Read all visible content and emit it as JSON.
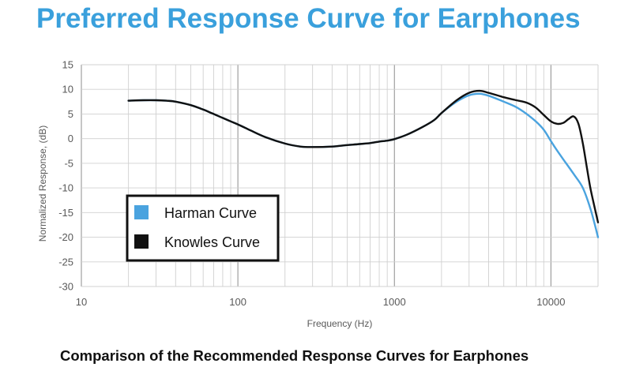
{
  "title": "Preferred Response Curve for Earphones",
  "caption": "Comparison of the Recommended Response Curves for Earphones",
  "colors": {
    "title": "#3aa0dc",
    "harman": "#4aa3df",
    "knowles": "#111111",
    "grid": "#d0d0d0"
  },
  "chart_data": {
    "type": "line",
    "xlabel": "Frequency (Hz)",
    "ylabel": "Normalized Response, (dB)",
    "xscale": "log",
    "xlim": [
      10,
      20000
    ],
    "ylim": [
      -30,
      15
    ],
    "grid": true,
    "legend_position": "lower-left",
    "xticks": [
      {
        "value": 10,
        "label": "10"
      },
      {
        "value": 100,
        "label": "100"
      },
      {
        "value": 1000,
        "label": "1000"
      },
      {
        "value": 10000,
        "label": "10000"
      }
    ],
    "yticks": [
      {
        "value": 15,
        "label": "15"
      },
      {
        "value": 10,
        "label": "10"
      },
      {
        "value": 5,
        "label": "5"
      },
      {
        "value": 0,
        "label": "0"
      },
      {
        "value": -5,
        "label": "-5"
      },
      {
        "value": -10,
        "label": "-10"
      },
      {
        "value": -15,
        "label": "-15"
      },
      {
        "value": -20,
        "label": "-20"
      },
      {
        "value": -25,
        "label": "-25"
      },
      {
        "value": -30,
        "label": "-30"
      }
    ],
    "series": [
      {
        "name": "Harman Curve",
        "x": [
          20,
          25,
          30,
          35,
          40,
          50,
          60,
          70,
          80,
          90,
          100,
          120,
          150,
          200,
          250,
          300,
          400,
          500,
          600,
          700,
          800,
          900,
          1000,
          1200,
          1500,
          1800,
          2000,
          2500,
          3000,
          3500,
          4000,
          5000,
          6000,
          7000,
          8000,
          9000,
          10000,
          11000,
          12000,
          14000,
          16000,
          18000,
          20000
        ],
        "y": [
          7.7,
          7.8,
          7.8,
          7.7,
          7.5,
          6.8,
          5.9,
          5.0,
          4.2,
          3.5,
          2.9,
          1.7,
          0.3,
          -1.0,
          -1.6,
          -1.7,
          -1.6,
          -1.3,
          -1.1,
          -0.9,
          -0.6,
          -0.4,
          -0.1,
          0.8,
          2.3,
          3.8,
          5.2,
          7.5,
          8.8,
          9.1,
          8.7,
          7.5,
          6.4,
          5.0,
          3.5,
          1.8,
          -0.5,
          -2.5,
          -4.2,
          -7.2,
          -10.0,
          -14.5,
          -20.0
        ]
      },
      {
        "name": "Knowles Curve",
        "x": [
          20,
          25,
          30,
          35,
          40,
          50,
          60,
          70,
          80,
          90,
          100,
          120,
          150,
          200,
          250,
          300,
          400,
          500,
          600,
          700,
          800,
          900,
          1000,
          1200,
          1500,
          1800,
          2000,
          2500,
          3000,
          3500,
          4000,
          5000,
          6000,
          7000,
          8000,
          9000,
          10000,
          11000,
          12000,
          13000,
          14000,
          15000,
          16000,
          17000,
          18000,
          20000
        ],
        "y": [
          7.7,
          7.8,
          7.8,
          7.7,
          7.5,
          6.8,
          5.9,
          5.0,
          4.2,
          3.5,
          2.9,
          1.7,
          0.3,
          -1.0,
          -1.6,
          -1.7,
          -1.6,
          -1.3,
          -1.1,
          -0.9,
          -0.6,
          -0.4,
          -0.1,
          0.8,
          2.3,
          3.8,
          5.2,
          7.8,
          9.3,
          9.7,
          9.3,
          8.4,
          7.8,
          7.3,
          6.3,
          4.8,
          3.5,
          3.0,
          3.2,
          4.0,
          4.5,
          3.0,
          -1.0,
          -6.0,
          -10.5,
          -17.0
        ]
      }
    ]
  }
}
